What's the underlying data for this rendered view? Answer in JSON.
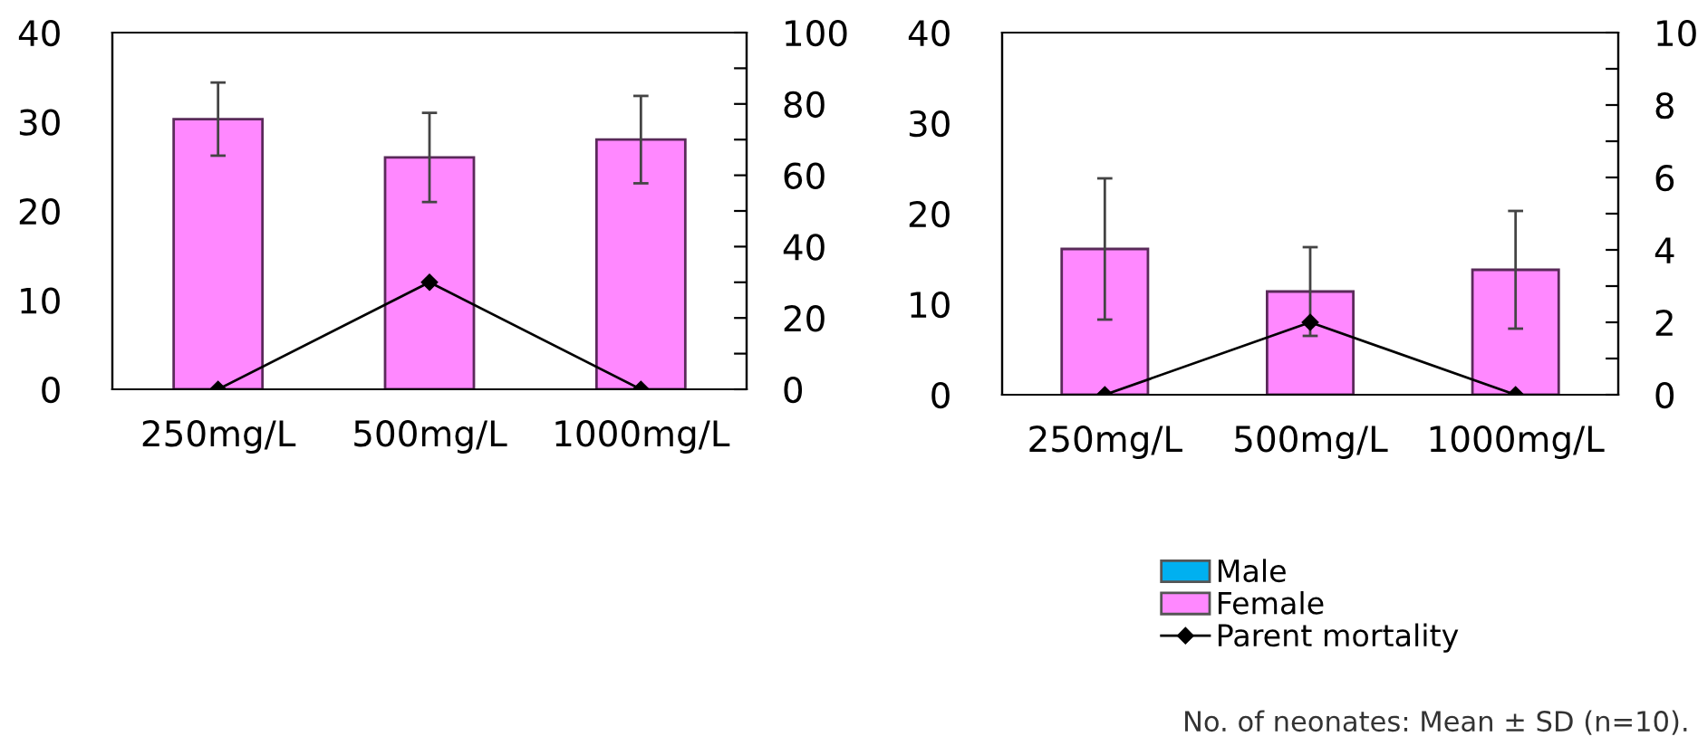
{
  "chart_data": [
    {
      "type": "bar",
      "categories": [
        "250mg/L",
        "500mg/L",
        "1000mg/L"
      ],
      "ylim": [
        0,
        40
      ],
      "yticks": [
        0,
        10,
        20,
        30,
        40
      ],
      "y2lim": [
        0,
        100
      ],
      "y2ticks": [
        0,
        {
          "value": 10,
          "label": null
        },
        20,
        {
          "value": 30,
          "label": null
        },
        40,
        {
          "value": 50,
          "label": null
        },
        60,
        {
          "value": 70,
          "label": null
        },
        80,
        {
          "value": 90,
          "label": null
        },
        100
      ],
      "grid": false,
      "legend": false,
      "series": [
        {
          "color": "#00b0f0",
          "values": [
            null,
            null,
            null
          ]
        },
        {
          "color": "#ff88ff",
          "values": [
            30.3,
            26,
            28
          ],
          "errors": [
            4.1,
            5,
            4.9
          ]
        },
        {
          "type": "line",
          "axis": "y2",
          "color": "#000000",
          "marker": "diamond",
          "values": [
            0,
            30,
            0
          ]
        }
      ]
    },
    {
      "type": "bar",
      "categories": [
        "250mg/L",
        "500mg/L",
        "1000mg/L"
      ],
      "ylim": [
        0,
        40
      ],
      "yticks": [
        0,
        10,
        20,
        30,
        40
      ],
      "y2lim": [
        0,
        10
      ],
      "y2ticks": [
        0,
        {
          "value": 1,
          "label": null
        },
        2,
        {
          "value": 3,
          "label": null
        },
        4,
        {
          "value": 5,
          "label": null
        },
        6,
        {
          "value": 7,
          "label": null
        },
        8,
        {
          "value": 9,
          "label": null
        },
        10
      ],
      "grid": false,
      "legend": "bottom",
      "annotations": [
        "No. of neonates: Mean ± SD (n=10)."
      ],
      "series": [
        {
          "name": "Male",
          "color": "#00b0f0",
          "values": [
            null,
            null,
            null
          ]
        },
        {
          "name": "Female",
          "color": "#ff88ff",
          "values": [
            16.1,
            11.4,
            13.8
          ],
          "errors": [
            7.8,
            4.9,
            6.5
          ]
        },
        {
          "name": "Parent mortality",
          "type": "line",
          "axis": "y2",
          "color": "#000000",
          "marker": "diamond",
          "values": [
            0,
            2,
            0
          ]
        }
      ]
    }
  ]
}
